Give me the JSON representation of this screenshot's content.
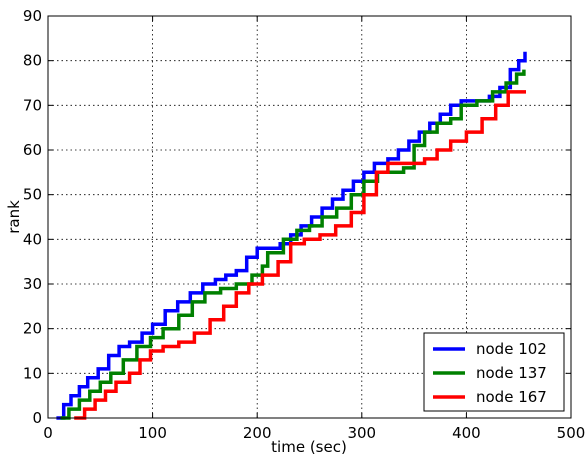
{
  "chart_data": {
    "type": "line",
    "title": "",
    "xlabel": "time (sec)",
    "ylabel": "rank",
    "xlim": [
      0,
      500
    ],
    "ylim": [
      0,
      90
    ],
    "xticks": [
      0,
      100,
      200,
      300,
      400,
      500
    ],
    "yticks": [
      0,
      10,
      20,
      30,
      40,
      50,
      60,
      70,
      80,
      90
    ],
    "grid": true,
    "legend_position": "bottom-right",
    "series": [
      {
        "name": "node 102",
        "color": "#0000ff",
        "step": true,
        "points": [
          [
            8,
            0
          ],
          [
            15,
            3
          ],
          [
            22,
            5
          ],
          [
            30,
            7
          ],
          [
            38,
            9
          ],
          [
            48,
            11
          ],
          [
            58,
            14
          ],
          [
            68,
            16
          ],
          [
            78,
            17
          ],
          [
            90,
            19
          ],
          [
            100,
            21
          ],
          [
            112,
            24
          ],
          [
            124,
            26
          ],
          [
            136,
            28
          ],
          [
            148,
            30
          ],
          [
            160,
            31
          ],
          [
            170,
            32
          ],
          [
            180,
            33
          ],
          [
            190,
            36
          ],
          [
            200,
            38
          ],
          [
            212,
            38
          ],
          [
            222,
            39
          ],
          [
            232,
            41
          ],
          [
            242,
            43
          ],
          [
            252,
            45
          ],
          [
            262,
            47
          ],
          [
            272,
            49
          ],
          [
            282,
            51
          ],
          [
            292,
            53
          ],
          [
            302,
            55
          ],
          [
            312,
            57
          ],
          [
            325,
            58
          ],
          [
            335,
            60
          ],
          [
            345,
            62
          ],
          [
            355,
            64
          ],
          [
            365,
            66
          ],
          [
            375,
            68
          ],
          [
            385,
            70
          ],
          [
            395,
            71
          ],
          [
            412,
            71
          ],
          [
            422,
            72
          ],
          [
            432,
            74
          ],
          [
            442,
            78
          ],
          [
            450,
            80
          ],
          [
            456,
            82
          ]
        ]
      },
      {
        "name": "node 137",
        "color": "#008000",
        "step": true,
        "points": [
          [
            12,
            0
          ],
          [
            20,
            2
          ],
          [
            30,
            4
          ],
          [
            40,
            6
          ],
          [
            50,
            8
          ],
          [
            60,
            10
          ],
          [
            72,
            13
          ],
          [
            85,
            16
          ],
          [
            98,
            18
          ],
          [
            110,
            20
          ],
          [
            125,
            23
          ],
          [
            138,
            26
          ],
          [
            150,
            28
          ],
          [
            165,
            29
          ],
          [
            180,
            30
          ],
          [
            195,
            32
          ],
          [
            205,
            34
          ],
          [
            210,
            37
          ],
          [
            225,
            40
          ],
          [
            238,
            42
          ],
          [
            250,
            43
          ],
          [
            262,
            45
          ],
          [
            276,
            47
          ],
          [
            290,
            50
          ],
          [
            302,
            53
          ],
          [
            315,
            55
          ],
          [
            328,
            55
          ],
          [
            340,
            56
          ],
          [
            350,
            61
          ],
          [
            360,
            64
          ],
          [
            372,
            66
          ],
          [
            385,
            67
          ],
          [
            395,
            70
          ],
          [
            410,
            71
          ],
          [
            425,
            73
          ],
          [
            438,
            75
          ],
          [
            448,
            77
          ],
          [
            455,
            78
          ]
        ]
      },
      {
        "name": "node 167",
        "color": "#ff0000",
        "step": true,
        "points": [
          [
            25,
            0
          ],
          [
            35,
            2
          ],
          [
            45,
            4
          ],
          [
            55,
            6
          ],
          [
            65,
            8
          ],
          [
            78,
            10
          ],
          [
            88,
            13
          ],
          [
            98,
            15
          ],
          [
            110,
            16
          ],
          [
            125,
            17
          ],
          [
            140,
            19
          ],
          [
            155,
            22
          ],
          [
            168,
            25
          ],
          [
            180,
            28
          ],
          [
            192,
            30
          ],
          [
            205,
            32
          ],
          [
            220,
            35
          ],
          [
            232,
            39
          ],
          [
            245,
            40
          ],
          [
            260,
            41
          ],
          [
            275,
            43
          ],
          [
            290,
            46
          ],
          [
            302,
            50
          ],
          [
            314,
            55
          ],
          [
            325,
            57
          ],
          [
            350,
            57
          ],
          [
            360,
            58
          ],
          [
            372,
            60
          ],
          [
            385,
            62
          ],
          [
            400,
            64
          ],
          [
            415,
            67
          ],
          [
            428,
            70
          ],
          [
            440,
            73
          ],
          [
            450,
            73
          ],
          [
            457,
            73
          ]
        ]
      }
    ]
  }
}
